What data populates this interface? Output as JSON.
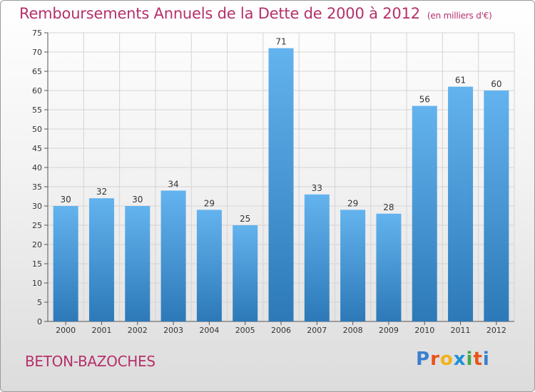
{
  "header": {
    "title": "Remboursements Annuels de la Dette de 2000 à 2012",
    "unit": "(en milliers d'€)"
  },
  "commune": "BETON-BAZOCHES",
  "brand": {
    "name": "Proxiti",
    "letter_colors": [
      "#3a7fd0",
      "#e8541a",
      "#f2b21b",
      "#1e8fd6",
      "#44a84a",
      "#e8541a",
      "#3a7fd0"
    ]
  },
  "colors": {
    "title": "#b5306a",
    "bar_top": "#63b3ee",
    "bar_bottom": "#2d79b8"
  },
  "chart_data": {
    "type": "bar",
    "categories": [
      "2000",
      "2001",
      "2002",
      "2003",
      "2004",
      "2005",
      "2006",
      "2007",
      "2008",
      "2009",
      "2010",
      "2011",
      "2012"
    ],
    "values": [
      30,
      32,
      30,
      34,
      29,
      25,
      71,
      33,
      29,
      28,
      56,
      61,
      60
    ],
    "ylim": [
      0,
      75
    ],
    "yticks": [
      0,
      5,
      10,
      15,
      20,
      25,
      30,
      35,
      40,
      45,
      50,
      55,
      60,
      65,
      70,
      75
    ],
    "grid": true,
    "data_labels": true
  }
}
